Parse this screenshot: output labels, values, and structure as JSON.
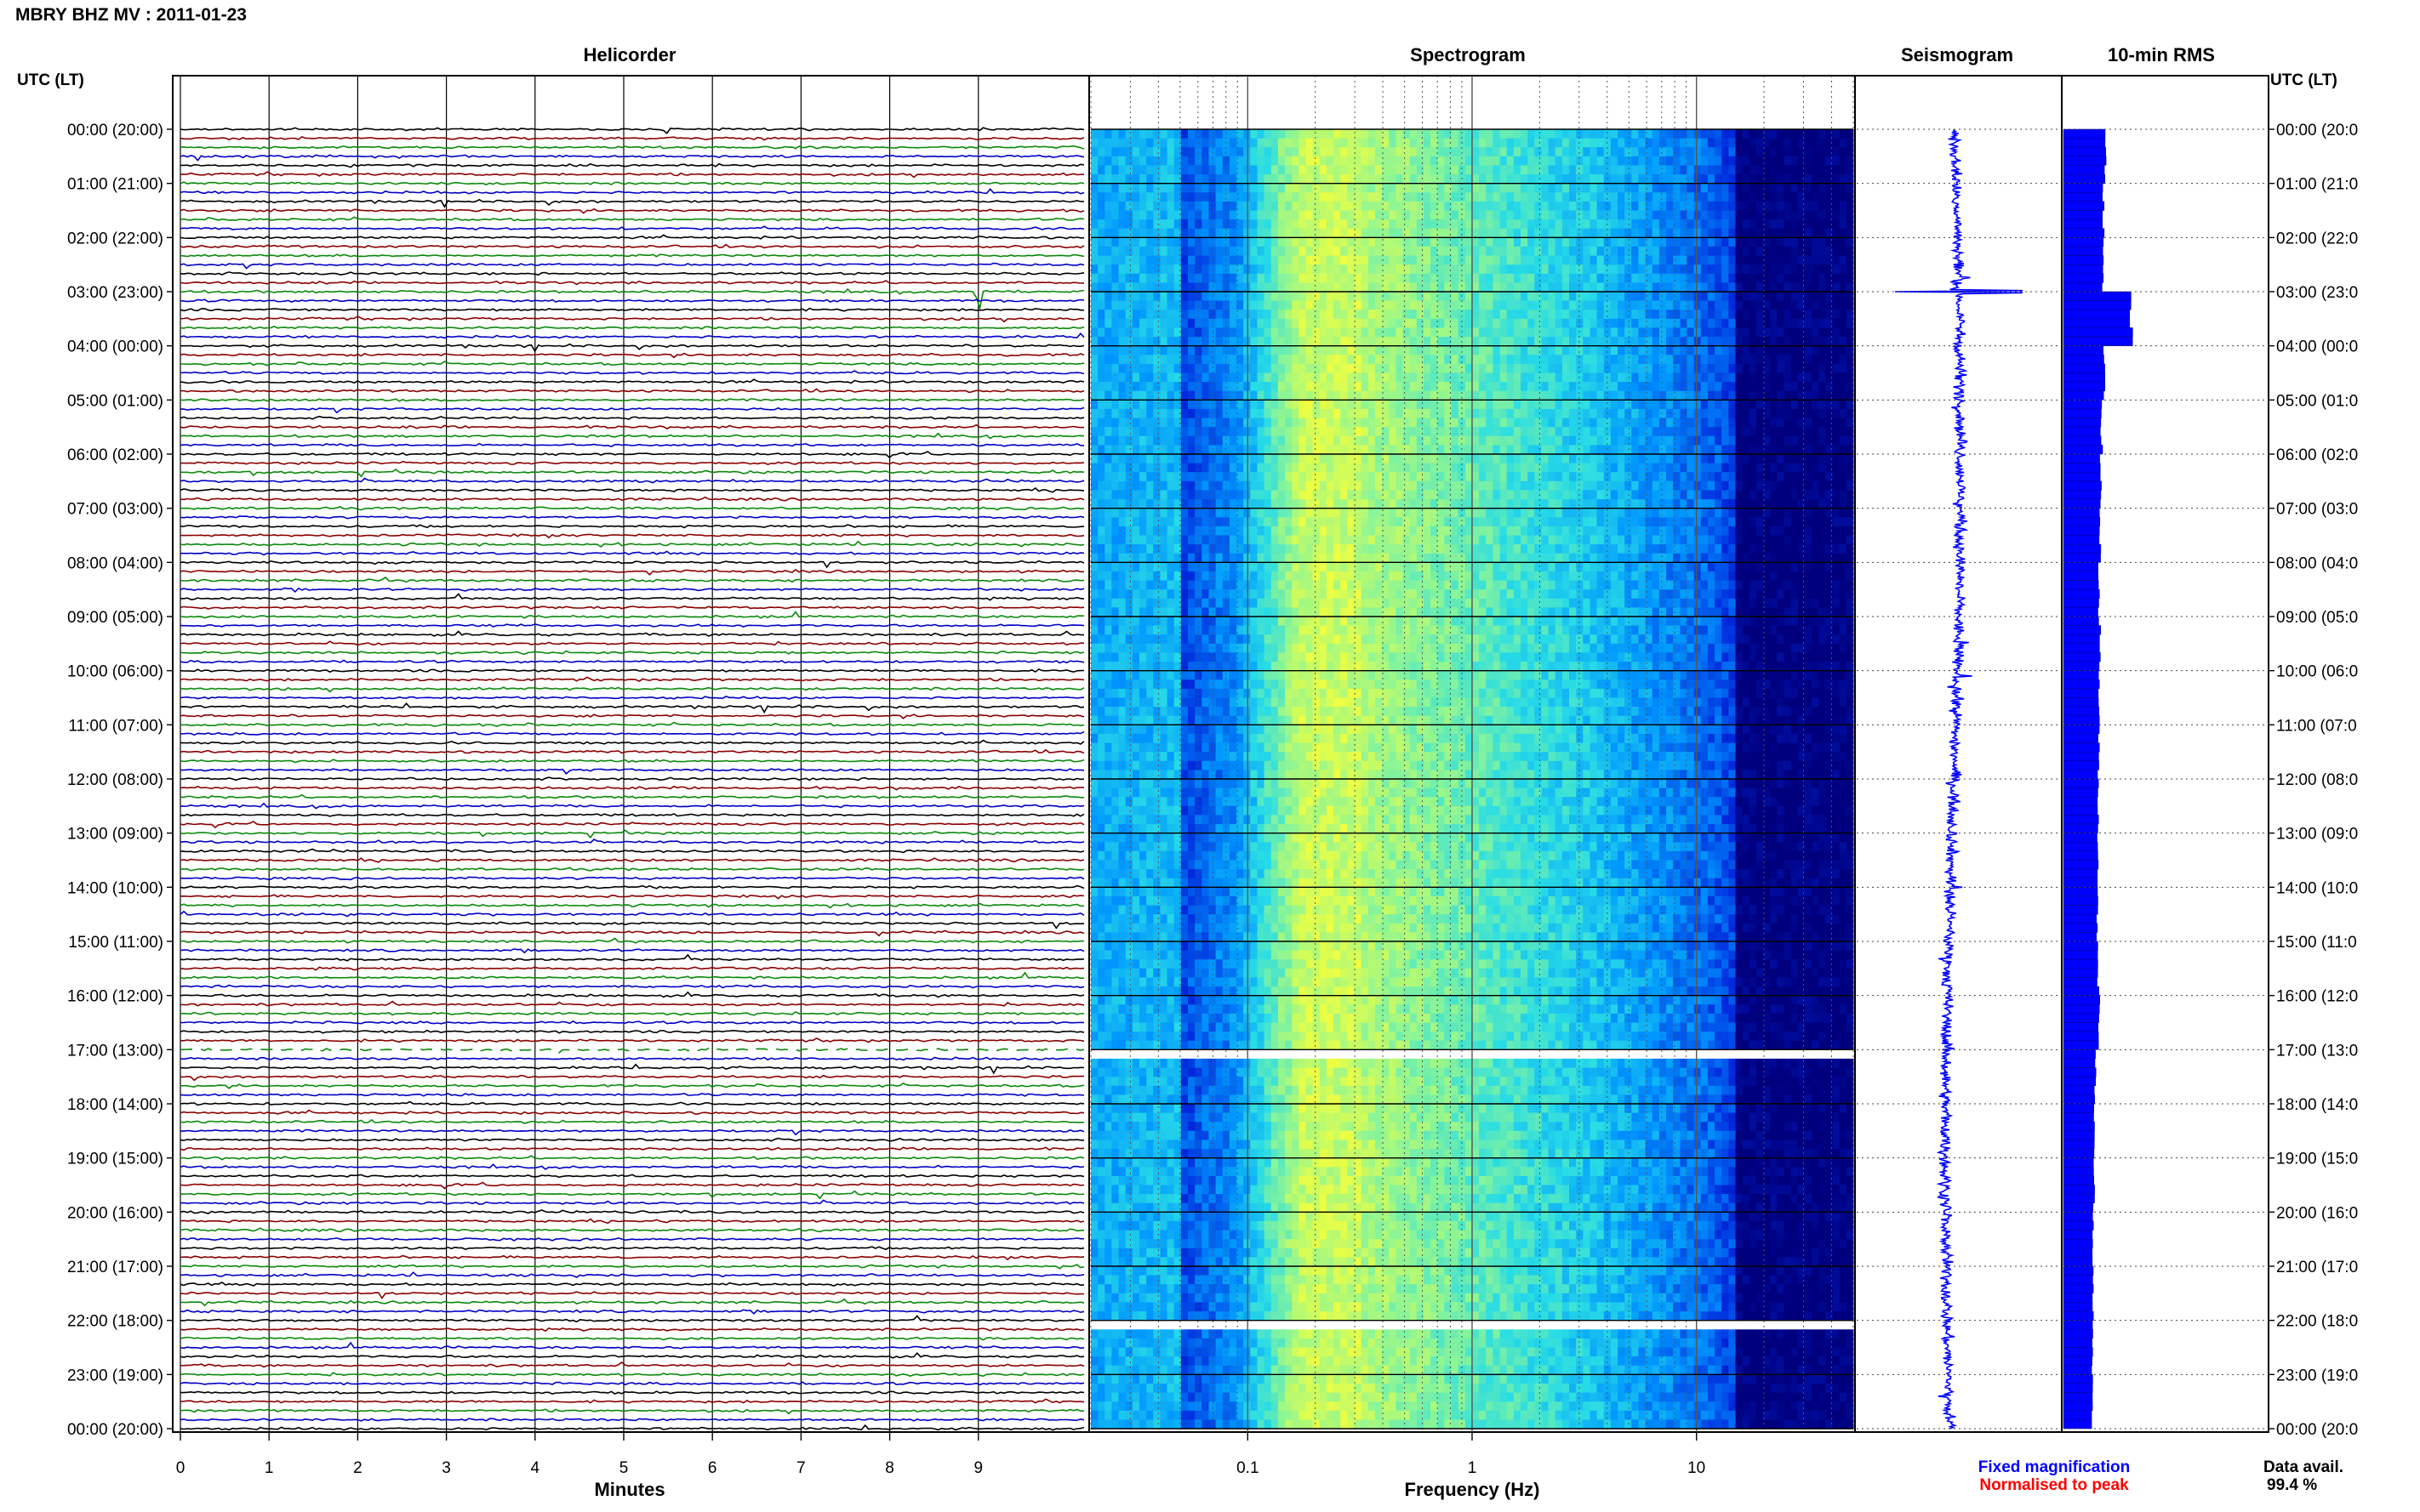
{
  "header": {
    "title": "MBRY BHZ MV : 2011-01-23"
  },
  "panels": {
    "helicorder": "Helicorder",
    "spectrogram": "Spectrogram",
    "seismogram": "Seismogram",
    "rms": "10-min RMS"
  },
  "axis_labels": {
    "left_top": "UTC (LT)",
    "right_top": "UTC (LT)",
    "minutes": "Minutes",
    "frequency": "Frequency (Hz)"
  },
  "footer": {
    "fixed_magnification": "Fixed magnification",
    "normalised_to_peak": "Normalised to peak",
    "data_avail_label": "Data avail.",
    "data_avail_value": "99.4 %"
  },
  "colors": {
    "trace_cycle": [
      "#000000",
      "#8b0000",
      "#0a8a0a",
      "#0000c8"
    ],
    "spectrogram_low": "#00007f",
    "spectrogram_high": "#f0ff40",
    "seismogram": "#0000ff",
    "rms_bar": "#0000ff",
    "fixed_magnification": "#0000ff",
    "normalised_to_peak": "#ff0000"
  },
  "chart_data": [
    {
      "type": "line",
      "name": "helicorder",
      "x_ticks": [
        "0",
        "1",
        "2",
        "3",
        "4",
        "5",
        "6",
        "7",
        "8",
        "9"
      ],
      "xlim": [
        0,
        10
      ],
      "xlabel": "Minutes",
      "rows_per_hour": 6,
      "hours": 24,
      "time_labels_left": [
        "00:00 (20:00)",
        "01:00 (21:00)",
        "02:00 (22:00)",
        "03:00 (23:00)",
        "04:00 (00:00)",
        "05:00 (01:00)",
        "06:00 (02:00)",
        "07:00 (03:00)",
        "08:00 (04:00)",
        "09:00 (05:00)",
        "10:00 (06:00)",
        "11:00 (07:00)",
        "12:00 (08:00)",
        "13:00 (09:00)",
        "14:00 (10:00)",
        "15:00 (11:00)",
        "16:00 (12:00)",
        "17:00 (13:00)",
        "18:00 (14:00)",
        "19:00 (15:00)",
        "20:00 (16:00)",
        "21:00 (17:00)",
        "22:00 (18:00)",
        "23:00 (19:00)",
        "00:00 (20:00)"
      ],
      "time_labels_right": [
        "00:00 (20:0",
        "01:00 (21:0",
        "02:00 (22:0",
        "03:00 (23:0",
        "04:00 (00:0",
        "05:00 (01:0",
        "06:00 (02:0",
        "07:00 (03:0",
        "08:00 (04:0",
        "09:00 (05:0",
        "10:00 (06:0",
        "11:00 (07:0",
        "12:00 (08:0",
        "13:00 (09:0",
        "14:00 (10:0",
        "15:00 (11:0",
        "16:00 (12:0",
        "17:00 (13:0",
        "18:00 (14:0",
        "19:00 (15:0",
        "20:00 (16:0",
        "21:00 (17:0",
        "22:00 (18:0",
        "23:00 (19:0",
        "00:00 (20:0"
      ],
      "events": [
        {
          "hour": 3.0,
          "minute": 9.0,
          "note": "largest transient"
        }
      ],
      "data_gaps": [
        {
          "from_hour": 16.9,
          "to_hour": 17.1
        }
      ]
    },
    {
      "type": "heatmap",
      "name": "spectrogram",
      "x_scale": "log",
      "xlim": [
        0.02,
        50
      ],
      "x_ticks": [
        "0.1",
        "1",
        "10"
      ],
      "xlabel": "Frequency (Hz)",
      "energy_peak_band_hz": [
        0.15,
        0.3
      ],
      "cutoff_hz": 15,
      "data_gaps": [
        {
          "from_hour": 16.95,
          "to_hour": 17.1
        },
        {
          "from_hour": 21.97,
          "to_hour": 22.03
        }
      ]
    },
    {
      "type": "line",
      "name": "seismogram",
      "color": "#0000ff",
      "events": [
        {
          "hour": 3.0,
          "relative_amplitude": 1.0
        }
      ]
    },
    {
      "type": "bar",
      "name": "10-min RMS",
      "orientation": "horizontal",
      "bins": 144,
      "relative_values_hourly": [
        1.0,
        0.95,
        0.93,
        1.6,
        0.96,
        0.9,
        0.88,
        0.86,
        0.84,
        0.86,
        0.84,
        0.83,
        0.82,
        0.82,
        0.8,
        0.82,
        0.84,
        0.75,
        0.72,
        0.72,
        0.7,
        0.7,
        0.68,
        0.68
      ],
      "spikes": [
        {
          "hour": 3.0,
          "relative_value": 1.6
        }
      ]
    }
  ]
}
